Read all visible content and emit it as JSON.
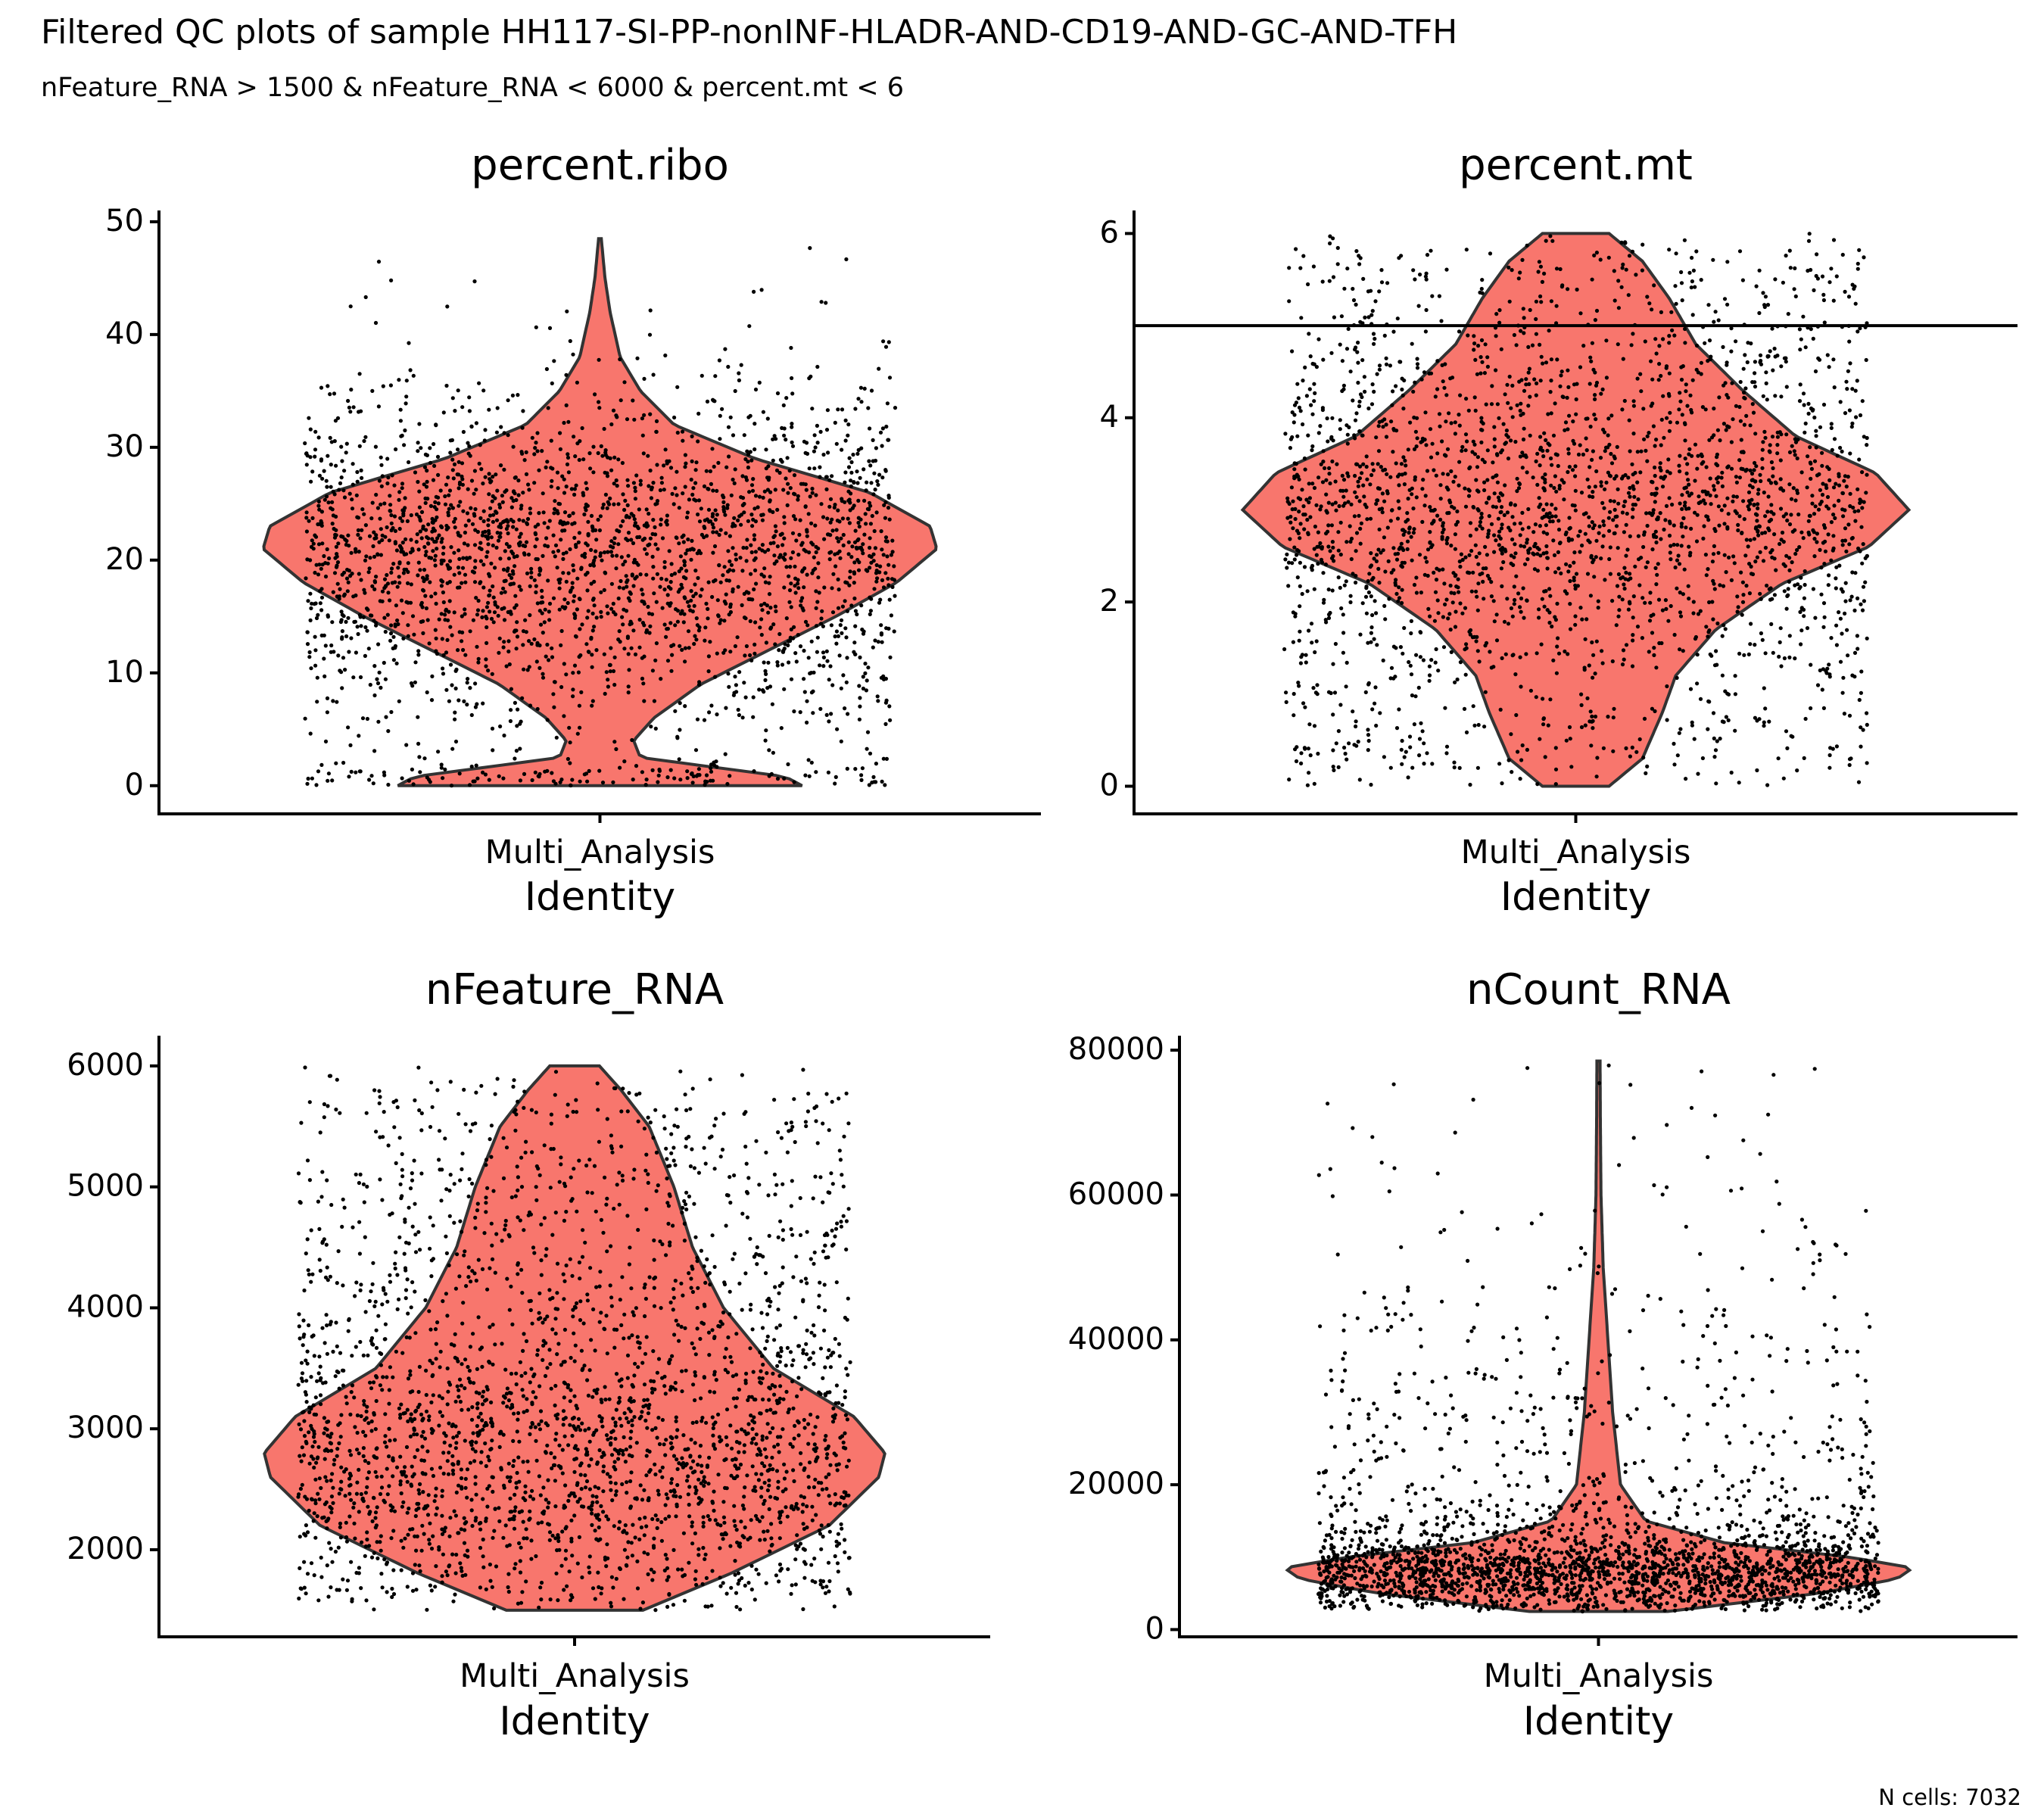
{
  "figure": {
    "title": "Filtered QC plots of sample HH117-SI-PP-nonINF-HLADR-AND-CD19-AND-GC-AND-TFH",
    "subtitle": "nFeature_RNA > 1500 & nFeature_RNA < 6000 & percent.mt < 6",
    "caption": "N cells: 7032"
  },
  "colors": {
    "violin_fill": "#F8766D",
    "violin_stroke": "#333333",
    "points": "#000000",
    "axis": "#000000"
  },
  "chart_data": [
    {
      "type": "violin",
      "title": "percent.ribo",
      "xlabel": "Identity",
      "categories": [
        "Multi_Analysis"
      ],
      "ylim": [
        -2.5,
        51
      ],
      "yticks": [
        0,
        10,
        20,
        30,
        40,
        50
      ],
      "ytick_labels": [
        "0",
        "10",
        "20",
        "30",
        "40",
        "50"
      ],
      "grid": false,
      "n_points": 7032,
      "density": [
        [
          0,
          0.6
        ],
        [
          0.8,
          0.55
        ],
        [
          2.5,
          0.12
        ],
        [
          4,
          0.1
        ],
        [
          6,
          0.16
        ],
        [
          9,
          0.3
        ],
        [
          12,
          0.5
        ],
        [
          15,
          0.7
        ],
        [
          18,
          0.88
        ],
        [
          21,
          1.0
        ],
        [
          23,
          0.98
        ],
        [
          26,
          0.8
        ],
        [
          29,
          0.46
        ],
        [
          32,
          0.22
        ],
        [
          35,
          0.12
        ],
        [
          38,
          0.06
        ],
        [
          42,
          0.03
        ],
        [
          45,
          0.015
        ],
        [
          48.5,
          0.004
        ]
      ],
      "max": 48.5,
      "min": 0
    },
    {
      "type": "violin",
      "title": "percent.mt",
      "xlabel": "Identity",
      "categories": [
        "Multi_Analysis"
      ],
      "ylim": [
        -0.3,
        6.25
      ],
      "yticks": [
        0,
        2,
        4,
        6
      ],
      "ytick_labels": [
        "0",
        "2",
        "4",
        "6"
      ],
      "grid": false,
      "hline": 5,
      "n_points": 7032,
      "density": [
        [
          0,
          0.1
        ],
        [
          0.3,
          0.2
        ],
        [
          0.8,
          0.26
        ],
        [
          1.2,
          0.3
        ],
        [
          1.7,
          0.42
        ],
        [
          2.2,
          0.62
        ],
        [
          2.6,
          0.88
        ],
        [
          3.0,
          1.0
        ],
        [
          3.4,
          0.9
        ],
        [
          3.8,
          0.66
        ],
        [
          4.3,
          0.5
        ],
        [
          4.8,
          0.36
        ],
        [
          5.3,
          0.28
        ],
        [
          5.7,
          0.2
        ],
        [
          6.0,
          0.1
        ]
      ],
      "max": 6,
      "min": 0
    },
    {
      "type": "violin",
      "title": "nFeature_RNA",
      "xlabel": "Identity",
      "categories": [
        "Multi_Analysis"
      ],
      "ylim": [
        1280,
        6250
      ],
      "yticks": [
        2000,
        3000,
        4000,
        5000,
        6000
      ],
      "ytick_labels": [
        "2000",
        "3000",
        "4000",
        "5000",
        "6000"
      ],
      "grid": false,
      "n_points": 7032,
      "density": [
        [
          1500,
          0.22
        ],
        [
          1800,
          0.5
        ],
        [
          2200,
          0.82
        ],
        [
          2600,
          0.98
        ],
        [
          2800,
          1.0
        ],
        [
          3100,
          0.9
        ],
        [
          3500,
          0.64
        ],
        [
          4000,
          0.48
        ],
        [
          4500,
          0.38
        ],
        [
          5000,
          0.32
        ],
        [
          5500,
          0.24
        ],
        [
          5800,
          0.15
        ],
        [
          6000,
          0.08
        ]
      ],
      "max": 6000,
      "min": 1500
    },
    {
      "type": "violin",
      "title": "nCount_RNA",
      "xlabel": "Identity",
      "categories": [
        "Multi_Analysis"
      ],
      "ylim": [
        -1000,
        82000
      ],
      "yticks": [
        0,
        20000,
        40000,
        60000,
        80000
      ],
      "ytick_labels": [
        "0",
        "20000",
        "40000",
        "60000",
        "80000"
      ],
      "grid": false,
      "n_points": 7032,
      "density": [
        [
          2500,
          0.22
        ],
        [
          5000,
          0.7
        ],
        [
          7000,
          0.95
        ],
        [
          8500,
          1.0
        ],
        [
          10000,
          0.8
        ],
        [
          12000,
          0.4
        ],
        [
          15000,
          0.15
        ],
        [
          20000,
          0.07
        ],
        [
          30000,
          0.045
        ],
        [
          40000,
          0.03
        ],
        [
          50000,
          0.015
        ],
        [
          60000,
          0.008
        ],
        [
          70000,
          0.006
        ],
        [
          78500,
          0.005
        ]
      ],
      "max": 78500,
      "min": 2500
    }
  ]
}
